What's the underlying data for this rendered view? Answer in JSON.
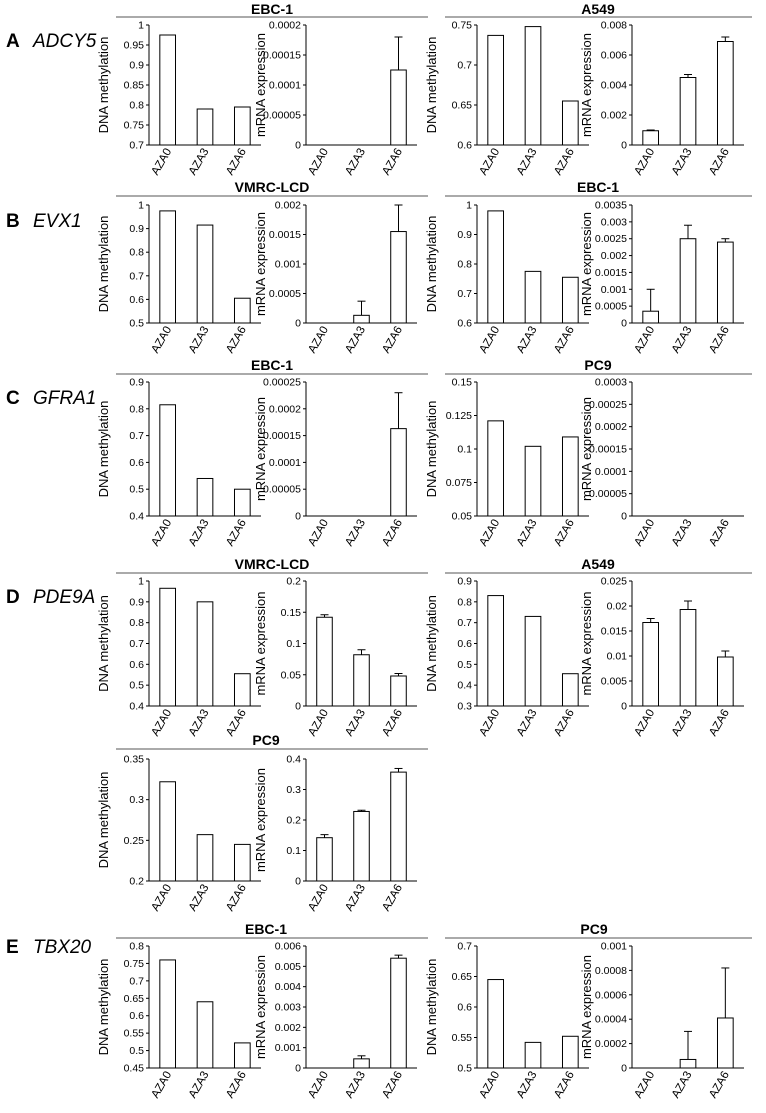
{
  "panels": [
    {
      "letter": "A",
      "gene": "ADCY5"
    },
    {
      "letter": "B",
      "gene": "EVX1"
    },
    {
      "letter": "C",
      "gene": "GFRA1"
    },
    {
      "letter": "D",
      "gene": "PDE9A"
    },
    {
      "letter": "E",
      "gene": "TBX20"
    }
  ],
  "cell_titles": [
    "EBC-1",
    "A549",
    "VMRC-LCD",
    "EBC-1",
    "EBC-1",
    "PC9",
    "VMRC-LCD",
    "A549",
    "PC9",
    "EBC-1",
    "PC9"
  ],
  "chart_data": [
    {
      "type": "bar",
      "group": "A ADCY5 EBC-1",
      "categories": [
        "AZA0",
        "AZA3",
        "AZA6"
      ],
      "values": [
        0.975,
        0.79,
        0.795
      ],
      "ylabel": "DNA methylation",
      "ylim": [
        0.7,
        1
      ],
      "yticks": [
        "0.7",
        "0.75",
        "0.8",
        "0.85",
        "0.9",
        "0.95",
        "1"
      ]
    },
    {
      "type": "bar",
      "group": "A ADCY5 EBC-1",
      "categories": [
        "AZA0",
        "AZA3",
        "AZA6"
      ],
      "values": [
        0,
        0,
        0.000125
      ],
      "errors": [
        0,
        0,
        5.5e-05
      ],
      "ylabel": "mRNA expression",
      "ylim": [
        0,
        0.0002
      ],
      "yticks": [
        "0",
        "0.00005",
        "0.0001",
        "0.00015",
        "0.0002"
      ]
    },
    {
      "type": "bar",
      "group": "A ADCY5 A549",
      "categories": [
        "AZA0",
        "AZA3",
        "AZA6"
      ],
      "values": [
        0.737,
        0.748,
        0.655
      ],
      "ylabel": "DNA methylation",
      "ylim": [
        0.6,
        0.75
      ],
      "yticks": [
        "0.6",
        "0.65",
        "0.7",
        "0.75"
      ]
    },
    {
      "type": "bar",
      "group": "A ADCY5 A549",
      "categories": [
        "AZA0",
        "AZA3",
        "AZA6"
      ],
      "values": [
        0.00095,
        0.0045,
        0.0069
      ],
      "errors": [
        5e-05,
        0.0002,
        0.0003
      ],
      "ylabel": "mRNA expression",
      "ylim": [
        0,
        0.008
      ],
      "yticks": [
        "0",
        "0.002",
        "0.004",
        "0.006",
        "0.008"
      ]
    },
    {
      "type": "bar",
      "group": "B EVX1 VMRC-LCD",
      "categories": [
        "AZA0",
        "AZA3",
        "AZA6"
      ],
      "values": [
        0.975,
        0.915,
        0.605
      ],
      "ylabel": "DNA methylation",
      "ylim": [
        0.5,
        1
      ],
      "yticks": [
        "0.5",
        "0.6",
        "0.7",
        "0.8",
        "0.9",
        "1"
      ]
    },
    {
      "type": "bar",
      "group": "B EVX1 VMRC-LCD",
      "categories": [
        "AZA0",
        "AZA3",
        "AZA6"
      ],
      "values": [
        0,
        0.00013,
        0.00155
      ],
      "errors": [
        0,
        0.00024,
        0.00045
      ],
      "ylabel": "mRNA expression",
      "ylim": [
        0,
        0.002
      ],
      "yticks": [
        "0",
        "0.0005",
        "0.001",
        "0.0015",
        "0.002"
      ]
    },
    {
      "type": "bar",
      "group": "B EVX1 EBC-1",
      "categories": [
        "AZA0",
        "AZA3",
        "AZA6"
      ],
      "values": [
        0.98,
        0.775,
        0.755
      ],
      "ylabel": "DNA methylation",
      "ylim": [
        0.6,
        1
      ],
      "yticks": [
        "0.6",
        "0.7",
        "0.8",
        "0.9",
        "1"
      ]
    },
    {
      "type": "bar",
      "group": "B EVX1 EBC-1",
      "categories": [
        "AZA0",
        "AZA3",
        "AZA6"
      ],
      "values": [
        0.00035,
        0.0025,
        0.0024
      ],
      "errors": [
        0.00065,
        0.0004,
        0.0001
      ],
      "ylabel": "mRNA expression",
      "ylim": [
        0,
        0.0035
      ],
      "yticks": [
        "0",
        "0.0005",
        "0.001",
        "0.0015",
        "0.002",
        "0.0025",
        "0.003",
        "0.0035"
      ]
    },
    {
      "type": "bar",
      "group": "C GFRA1 EBC-1",
      "categories": [
        "AZA0",
        "AZA3",
        "AZA6"
      ],
      "values": [
        0.815,
        0.54,
        0.5
      ],
      "ylabel": "DNA methylation",
      "ylim": [
        0.4,
        0.9
      ],
      "yticks": [
        "0.4",
        "0.5",
        "0.6",
        "0.7",
        "0.8",
        "0.9"
      ]
    },
    {
      "type": "bar",
      "group": "C GFRA1 EBC-1",
      "categories": [
        "AZA0",
        "AZA3",
        "AZA6"
      ],
      "values": [
        0,
        0,
        0.000163
      ],
      "errors": [
        0,
        0,
        6.7e-05
      ],
      "ylabel": "mRNA expression",
      "ylim": [
        0,
        0.00025
      ],
      "yticks": [
        "0",
        "0.00005",
        "0.0001",
        "0.00015",
        "0.0002",
        "0.00025"
      ]
    },
    {
      "type": "bar",
      "group": "C GFRA1 PC9",
      "categories": [
        "AZA0",
        "AZA3",
        "AZA6"
      ],
      "values": [
        0.121,
        0.102,
        0.109
      ],
      "ylabel": "DNA methylation",
      "ylim": [
        0.05,
        0.15
      ],
      "yticks": [
        "0.05",
        "0.075",
        "0.1",
        "0.125",
        "0.15"
      ]
    },
    {
      "type": "bar",
      "group": "C GFRA1 PC9",
      "categories": [
        "AZA0",
        "AZA3",
        "AZA6"
      ],
      "values": [
        0,
        0,
        0
      ],
      "ylabel": "mRNA expression",
      "ylim": [
        0,
        0.0003
      ],
      "yticks": [
        "0",
        "0.00005",
        "0.0001",
        "0.00015",
        "0.0002",
        "0.00025",
        "0.0003"
      ]
    },
    {
      "type": "bar",
      "group": "D PDE9A VMRC-LCD",
      "categories": [
        "AZA0",
        "AZA3",
        "AZA6"
      ],
      "values": [
        0.965,
        0.9,
        0.555
      ],
      "ylabel": "DNA methylation",
      "ylim": [
        0.4,
        1
      ],
      "yticks": [
        "0.4",
        "0.5",
        "0.6",
        "0.7",
        "0.8",
        "0.9",
        "1"
      ]
    },
    {
      "type": "bar",
      "group": "D PDE9A VMRC-LCD",
      "categories": [
        "AZA0",
        "AZA3",
        "AZA6"
      ],
      "values": [
        0.142,
        0.082,
        0.048
      ],
      "errors": [
        0.004,
        0.008,
        0.004
      ],
      "ylabel": "mRNA expression",
      "ylim": [
        0,
        0.2
      ],
      "yticks": [
        "0",
        "0.05",
        "0.1",
        "0.15",
        "0.2"
      ]
    },
    {
      "type": "bar",
      "group": "D PDE9A A549",
      "categories": [
        "AZA0",
        "AZA3",
        "AZA6"
      ],
      "values": [
        0.83,
        0.73,
        0.455
      ],
      "ylabel": "DNA methylation",
      "ylim": [
        0.3,
        0.9
      ],
      "yticks": [
        "0.3",
        "0.4",
        "0.5",
        "0.6",
        "0.7",
        "0.8",
        "0.9"
      ]
    },
    {
      "type": "bar",
      "group": "D PDE9A A549",
      "categories": [
        "AZA0",
        "AZA3",
        "AZA6"
      ],
      "values": [
        0.0167,
        0.0193,
        0.0098
      ],
      "errors": [
        0.0008,
        0.0017,
        0.0012
      ],
      "ylabel": "mRNA expression",
      "ylim": [
        0,
        0.025
      ],
      "yticks": [
        "0",
        "0.005",
        "0.01",
        "0.015",
        "0.02",
        "0.025"
      ]
    },
    {
      "type": "bar",
      "group": "D PDE9A PC9",
      "categories": [
        "AZA0",
        "AZA3",
        "AZA6"
      ],
      "values": [
        0.322,
        0.257,
        0.245
      ],
      "ylabel": "DNA methylation",
      "ylim": [
        0.2,
        0.35
      ],
      "yticks": [
        "0.2",
        "0.25",
        "0.3",
        "0.35"
      ]
    },
    {
      "type": "bar",
      "group": "D PDE9A PC9",
      "categories": [
        "AZA0",
        "AZA3",
        "AZA6"
      ],
      "values": [
        0.142,
        0.228,
        0.357
      ],
      "errors": [
        0.01,
        0.004,
        0.012
      ],
      "ylabel": "mRNA expression",
      "ylim": [
        0,
        0.4
      ],
      "yticks": [
        "0",
        "0.1",
        "0.2",
        "0.3",
        "0.4"
      ]
    },
    {
      "type": "bar",
      "group": "E TBX20 EBC-1",
      "categories": [
        "AZA0",
        "AZA3",
        "AZA6"
      ],
      "values": [
        0.76,
        0.64,
        0.522
      ],
      "ylabel": "DNA methylation",
      "ylim": [
        0.45,
        0.8
      ],
      "yticks": [
        "0.45",
        "0.5",
        "0.55",
        "0.6",
        "0.65",
        "0.7",
        "0.75",
        "0.8"
      ]
    },
    {
      "type": "bar",
      "group": "E TBX20 EBC-1",
      "categories": [
        "AZA0",
        "AZA3",
        "AZA6"
      ],
      "values": [
        0,
        0.00045,
        0.0054
      ],
      "errors": [
        0,
        0.00015,
        0.00015
      ],
      "ylabel": "mRNA expression",
      "ylim": [
        0,
        0.006
      ],
      "yticks": [
        "0",
        "0.001",
        "0.002",
        "0.003",
        "0.004",
        "0.005",
        "0.006"
      ]
    },
    {
      "type": "bar",
      "group": "E TBX20 PC9",
      "categories": [
        "AZA0",
        "AZA3",
        "AZA6"
      ],
      "values": [
        0.645,
        0.542,
        0.552
      ],
      "ylabel": "DNA methylation",
      "ylim": [
        0.5,
        0.7
      ],
      "yticks": [
        "0.5",
        "0.55",
        "0.6",
        "0.65",
        "0.7"
      ]
    },
    {
      "type": "bar",
      "group": "E TBX20 PC9",
      "categories": [
        "AZA0",
        "AZA3",
        "AZA6"
      ],
      "values": [
        0,
        7e-05,
        0.00041
      ],
      "errors": [
        0,
        0.00023,
        0.00041
      ],
      "ylabel": "mRNA expression",
      "ylim": [
        0,
        0.001
      ],
      "yticks": [
        "0",
        "0.0002",
        "0.0004",
        "0.0006",
        "0.0008",
        "0.001"
      ]
    }
  ]
}
